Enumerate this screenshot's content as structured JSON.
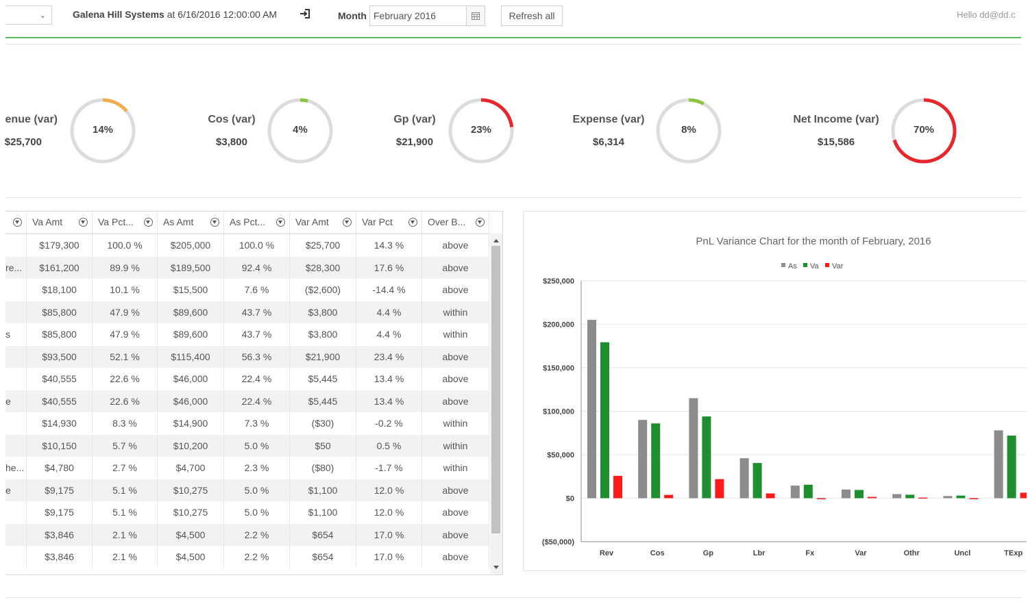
{
  "topbar": {
    "company": "Galena Hill Systems",
    "as_of": "at 6/16/2016 12:00:00 AM",
    "month_label": "Month",
    "month_value": "February 2016",
    "refresh_label": "Refresh all",
    "hello": "Hello dd@dd.c"
  },
  "kpis": [
    {
      "label": "enue (var)",
      "value": "$25,700",
      "pct_text": "14%",
      "pct": 14,
      "color": "#f0ad4e"
    },
    {
      "label": "Cos (var)",
      "value": "$3,800",
      "pct_text": "4%",
      "pct": 4,
      "color": "#8cc63f"
    },
    {
      "label": "Gp (var)",
      "value": "$21,900",
      "pct_text": "23%",
      "pct": 23,
      "color": "#e8262b"
    },
    {
      "label": "Expense (var)",
      "value": "$6,314",
      "pct_text": "8%",
      "pct": 8,
      "color": "#8cc63f"
    },
    {
      "label": "Net Income (var)",
      "value": "$15,586",
      "pct_text": "70%",
      "pct": 70,
      "color": "#e8262b"
    }
  ],
  "kpi_value_0": "$25,700",
  "grid": {
    "headers": [
      "",
      "Va Amt",
      "Va Pct...",
      "As Amt",
      "As Pct...",
      "Var Amt",
      "Var Pct",
      "Over B..."
    ],
    "rows": [
      [
        "",
        "$179,300",
        "100.0 %",
        "$205,000",
        "100.0 %",
        "$25,700",
        "14.3 %",
        "above"
      ],
      [
        "re...",
        "$161,200",
        "89.9 %",
        "$189,500",
        "92.4 %",
        "$28,300",
        "17.6 %",
        "above"
      ],
      [
        "",
        "$18,100",
        "10.1 %",
        "$15,500",
        "7.6 %",
        "($2,600)",
        "-14.4 %",
        "above"
      ],
      [
        "",
        "$85,800",
        "47.9 %",
        "$89,600",
        "43.7 %",
        "$3,800",
        "4.4 %",
        "within"
      ],
      [
        "s",
        "$85,800",
        "47.9 %",
        "$89,600",
        "43.7 %",
        "$3,800",
        "4.4 %",
        "within"
      ],
      [
        "",
        "$93,500",
        "52.1 %",
        "$115,400",
        "56.3 %",
        "$21,900",
        "23.4 %",
        "above"
      ],
      [
        "",
        "$40,555",
        "22.6 %",
        "$46,000",
        "22.4 %",
        "$5,445",
        "13.4 %",
        "above"
      ],
      [
        "e",
        "$40,555",
        "22.6 %",
        "$46,000",
        "22.4 %",
        "$5,445",
        "13.4 %",
        "above"
      ],
      [
        "",
        "$14,930",
        "8.3 %",
        "$14,900",
        "7.3 %",
        "($30)",
        "-0.2 %",
        "within"
      ],
      [
        "",
        "$10,150",
        "5.7 %",
        "$10,200",
        "5.0 %",
        "$50",
        "0.5 %",
        "within"
      ],
      [
        "he...",
        "$4,780",
        "2.7 %",
        "$4,700",
        "2.3 %",
        "($80)",
        "-1.7 %",
        "within"
      ],
      [
        "e",
        "$9,175",
        "5.1 %",
        "$10,275",
        "5.0 %",
        "$1,100",
        "12.0 %",
        "above"
      ],
      [
        "",
        "$9,175",
        "5.1 %",
        "$10,275",
        "5.0 %",
        "$1,100",
        "12.0 %",
        "above"
      ],
      [
        "",
        "$3,846",
        "2.1 %",
        "$4,500",
        "2.2 %",
        "$654",
        "17.0 %",
        "above"
      ],
      [
        "",
        "$3,846",
        "2.1 %",
        "$4,500",
        "2.2 %",
        "$654",
        "17.0 %",
        "above"
      ]
    ]
  },
  "chart_data": {
    "type": "bar",
    "title": "PnL Variance Chart for the month of February, 2016",
    "categories": [
      "Rev",
      "Cos",
      "Gp",
      "Lbr",
      "Fx",
      "Var",
      "Othr",
      "Uncl",
      "TExp"
    ],
    "series": [
      {
        "name": "As",
        "color": "#8c8c8c",
        "values": [
          205000,
          90000,
          115000,
          46000,
          14500,
          10000,
          4700,
          2500,
          78000
        ]
      },
      {
        "name": "Va",
        "color": "#1e8e2e",
        "values": [
          179300,
          86000,
          94000,
          40500,
          15500,
          9500,
          4000,
          3000,
          72000
        ]
      },
      {
        "name": "Var",
        "color": "#ff1a1a",
        "values": [
          25700,
          3800,
          21900,
          5445,
          -500,
          1500,
          700,
          -500,
          6314
        ]
      }
    ],
    "y_ticks": [
      "$250,000",
      "$200,000",
      "$150,000",
      "$100,000",
      "$50,000",
      "$0",
      "($50,000)"
    ],
    "ylim": [
      -50000,
      250000
    ],
    "legend": "top"
  }
}
